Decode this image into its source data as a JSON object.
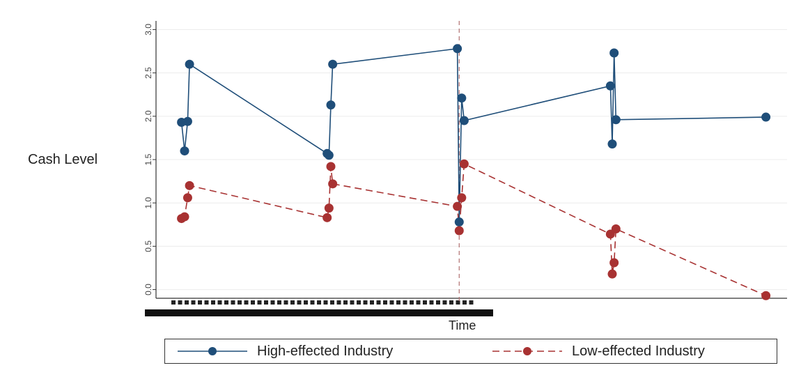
{
  "chart_data": {
    "type": "line",
    "title": "",
    "xlabel": "Time",
    "ylabel": "Cash Level",
    "ylim": [
      -0.1,
      3.1
    ],
    "yticks": [
      "0.0",
      "0.5",
      "1.0",
      "1.5",
      "2.0",
      "2.5",
      "3.0"
    ],
    "grid": "horizontal",
    "legend_position": "bottom",
    "vertical_reference_line": true,
    "series": [
      {
        "name": "High-effected Industry",
        "color": "#1f4e79",
        "linestyle": "solid",
        "points": [
          {
            "x": 0.03,
            "y": 1.93
          },
          {
            "x": 0.035,
            "y": 1.6
          },
          {
            "x": 0.04,
            "y": 1.94
          },
          {
            "x": 0.043,
            "y": 2.6
          },
          {
            "x": 0.266,
            "y": 1.57
          },
          {
            "x": 0.269,
            "y": 1.55
          },
          {
            "x": 0.272,
            "y": 2.13
          },
          {
            "x": 0.275,
            "y": 2.6
          },
          {
            "x": 0.477,
            "y": 2.78
          },
          {
            "x": 0.48,
            "y": 0.78
          },
          {
            "x": 0.484,
            "y": 2.21
          },
          {
            "x": 0.488,
            "y": 1.95
          },
          {
            "x": 0.725,
            "y": 2.35
          },
          {
            "x": 0.728,
            "y": 1.68
          },
          {
            "x": 0.731,
            "y": 2.73
          },
          {
            "x": 0.734,
            "y": 1.96
          },
          {
            "x": 0.977,
            "y": 1.99
          }
        ]
      },
      {
        "name": "Low-effected Industry",
        "color": "#a83232",
        "linestyle": "dashed",
        "points": [
          {
            "x": 0.03,
            "y": 0.82
          },
          {
            "x": 0.035,
            "y": 0.84
          },
          {
            "x": 0.04,
            "y": 1.06
          },
          {
            "x": 0.043,
            "y": 1.2
          },
          {
            "x": 0.266,
            "y": 0.83
          },
          {
            "x": 0.269,
            "y": 0.94
          },
          {
            "x": 0.272,
            "y": 1.42
          },
          {
            "x": 0.275,
            "y": 1.22
          },
          {
            "x": 0.477,
            "y": 0.96
          },
          {
            "x": 0.48,
            "y": 0.68
          },
          {
            "x": 0.484,
            "y": 1.06
          },
          {
            "x": 0.488,
            "y": 1.45
          },
          {
            "x": 0.725,
            "y": 0.64
          },
          {
            "x": 0.728,
            "y": 0.18
          },
          {
            "x": 0.731,
            "y": 0.31
          },
          {
            "x": 0.734,
            "y": 0.7
          },
          {
            "x": 0.977,
            "y": -0.07
          }
        ]
      }
    ]
  }
}
